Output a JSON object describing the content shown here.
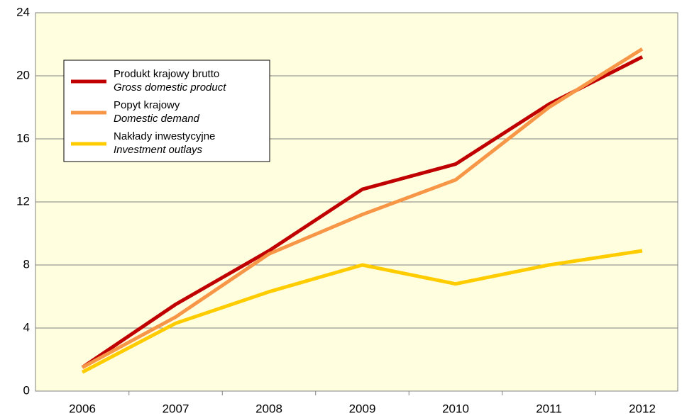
{
  "chart_data": {
    "type": "line",
    "categories": [
      "2006",
      "2007",
      "2008",
      "2009",
      "2010",
      "2011",
      "2012"
    ],
    "series": [
      {
        "name": "Produkt krajowy brutto",
        "name_en": "Gross domestic product",
        "color": "#c00000",
        "values": [
          1.5,
          5.5,
          8.9,
          12.8,
          14.4,
          18.2,
          21.2
        ]
      },
      {
        "name": "Popyt krajowy",
        "name_en": "Domestic demand",
        "color": "#f79646",
        "values": [
          1.5,
          4.7,
          8.7,
          11.2,
          13.4,
          18.0,
          21.7
        ]
      },
      {
        "name": "Nakłady inwestycyjne",
        "name_en": "Investment outlays",
        "color": "#ffcc00",
        "values": [
          1.2,
          4.3,
          6.3,
          8.0,
          6.8,
          8.0,
          8.9
        ]
      }
    ],
    "ylim": [
      0,
      24
    ],
    "yticks": [
      0,
      4,
      8,
      12,
      16,
      20,
      24
    ],
    "grid": true,
    "legend": "upper left"
  }
}
